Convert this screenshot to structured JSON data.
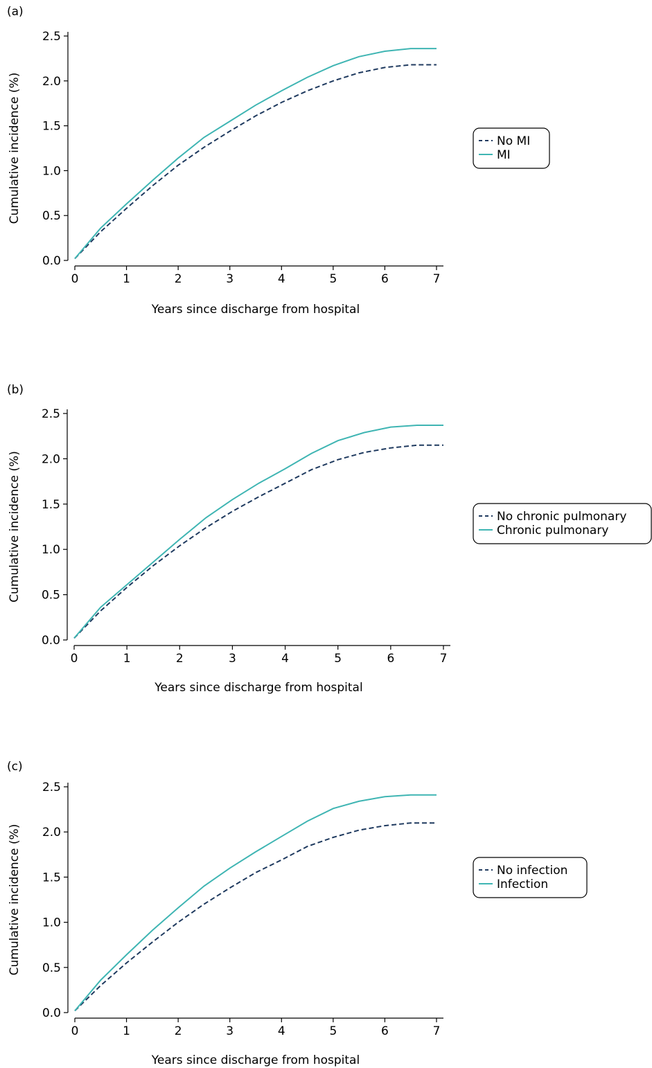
{
  "chart_data": [
    {
      "type": "line",
      "panel_label": "(a)",
      "xlabel": "Years since discharge from hospital",
      "ylabel": "Cumulative incidence (%)",
      "xlim": [
        0,
        7
      ],
      "ylim": [
        0,
        2.5
      ],
      "xticks": [
        "0",
        "1",
        "2",
        "3",
        "4",
        "5",
        "6",
        "7"
      ],
      "yticks": [
        "0.0",
        "0.5",
        "1.0",
        "1.5",
        "2.0",
        "2.5"
      ],
      "grid": false,
      "legend_position": "right",
      "series": [
        {
          "name": "No MI",
          "style": "dashed",
          "color": "#1f3a5f",
          "x": [
            0,
            0.5,
            1,
            1.5,
            2,
            2.5,
            3,
            3.5,
            4,
            4.5,
            5,
            5.5,
            6,
            6.5,
            7
          ],
          "y": [
            0.02,
            0.32,
            0.58,
            0.83,
            1.06,
            1.26,
            1.44,
            1.61,
            1.76,
            1.89,
            2.0,
            2.09,
            2.15,
            2.18,
            2.18
          ]
        },
        {
          "name": "MI",
          "style": "solid",
          "color": "#3fb5b3",
          "x": [
            0,
            0.5,
            1,
            1.5,
            2,
            2.5,
            3,
            3.5,
            4,
            4.5,
            5,
            5.5,
            6,
            6.5,
            7
          ],
          "y": [
            0.02,
            0.36,
            0.63,
            0.89,
            1.14,
            1.37,
            1.55,
            1.73,
            1.89,
            2.04,
            2.17,
            2.27,
            2.33,
            2.36,
            2.36
          ]
        }
      ]
    },
    {
      "type": "line",
      "panel_label": "(b)",
      "xlabel": "Years since discharge from hospital",
      "ylabel": "Cumulative incidence (%)",
      "xlim": [
        0,
        7
      ],
      "ylim": [
        0,
        2.5
      ],
      "xticks": [
        "0",
        "1",
        "2",
        "3",
        "4",
        "5",
        "6",
        "7"
      ],
      "yticks": [
        "0.0",
        "0.5",
        "1.0",
        "1.5",
        "2.0",
        "2.5"
      ],
      "grid": false,
      "legend_position": "right",
      "series": [
        {
          "name": "No chronic pulmonary",
          "style": "dashed",
          "color": "#1f3a5f",
          "x": [
            0,
            0.5,
            1,
            1.5,
            2,
            2.5,
            3,
            3.5,
            4,
            4.5,
            5,
            5.5,
            6,
            6.5,
            7
          ],
          "y": [
            0.02,
            0.32,
            0.58,
            0.82,
            1.04,
            1.24,
            1.42,
            1.58,
            1.73,
            1.88,
            1.99,
            2.07,
            2.12,
            2.15,
            2.15
          ]
        },
        {
          "name": "Chronic pulmonary",
          "style": "solid",
          "color": "#3fb5b3",
          "x": [
            0,
            0.5,
            1,
            1.5,
            2,
            2.5,
            3,
            3.5,
            4,
            4.5,
            5,
            5.5,
            6,
            6.5,
            7
          ],
          "y": [
            0.02,
            0.36,
            0.61,
            0.86,
            1.11,
            1.35,
            1.55,
            1.73,
            1.89,
            2.06,
            2.2,
            2.29,
            2.35,
            2.37,
            2.37
          ]
        }
      ]
    },
    {
      "type": "line",
      "panel_label": "(c)",
      "xlabel": "Years since discharge from hospital",
      "ylabel": "Cumulative incidence (%)",
      "xlim": [
        0,
        7
      ],
      "ylim": [
        0,
        2.5
      ],
      "xticks": [
        "0",
        "1",
        "2",
        "3",
        "4",
        "5",
        "6",
        "7"
      ],
      "yticks": [
        "0.0",
        "0.5",
        "1.0",
        "1.5",
        "2.0",
        "2.5"
      ],
      "grid": false,
      "legend_position": "right",
      "series": [
        {
          "name": "No infection",
          "style": "dashed",
          "color": "#1f3a5f",
          "x": [
            0,
            0.5,
            1,
            1.5,
            2,
            2.5,
            3,
            3.5,
            4,
            4.5,
            5,
            5.5,
            6,
            6.5,
            7
          ],
          "y": [
            0.02,
            0.3,
            0.55,
            0.78,
            1.0,
            1.2,
            1.38,
            1.55,
            1.69,
            1.84,
            1.94,
            2.02,
            2.07,
            2.1,
            2.1
          ]
        },
        {
          "name": "Infection",
          "style": "solid",
          "color": "#3fb5b3",
          "x": [
            0,
            0.5,
            1,
            1.5,
            2,
            2.5,
            3,
            3.5,
            4,
            4.5,
            5,
            5.5,
            6,
            6.5,
            7
          ],
          "y": [
            0.02,
            0.36,
            0.64,
            0.91,
            1.16,
            1.4,
            1.6,
            1.78,
            1.95,
            2.12,
            2.26,
            2.34,
            2.39,
            2.41,
            2.41
          ]
        }
      ]
    }
  ]
}
